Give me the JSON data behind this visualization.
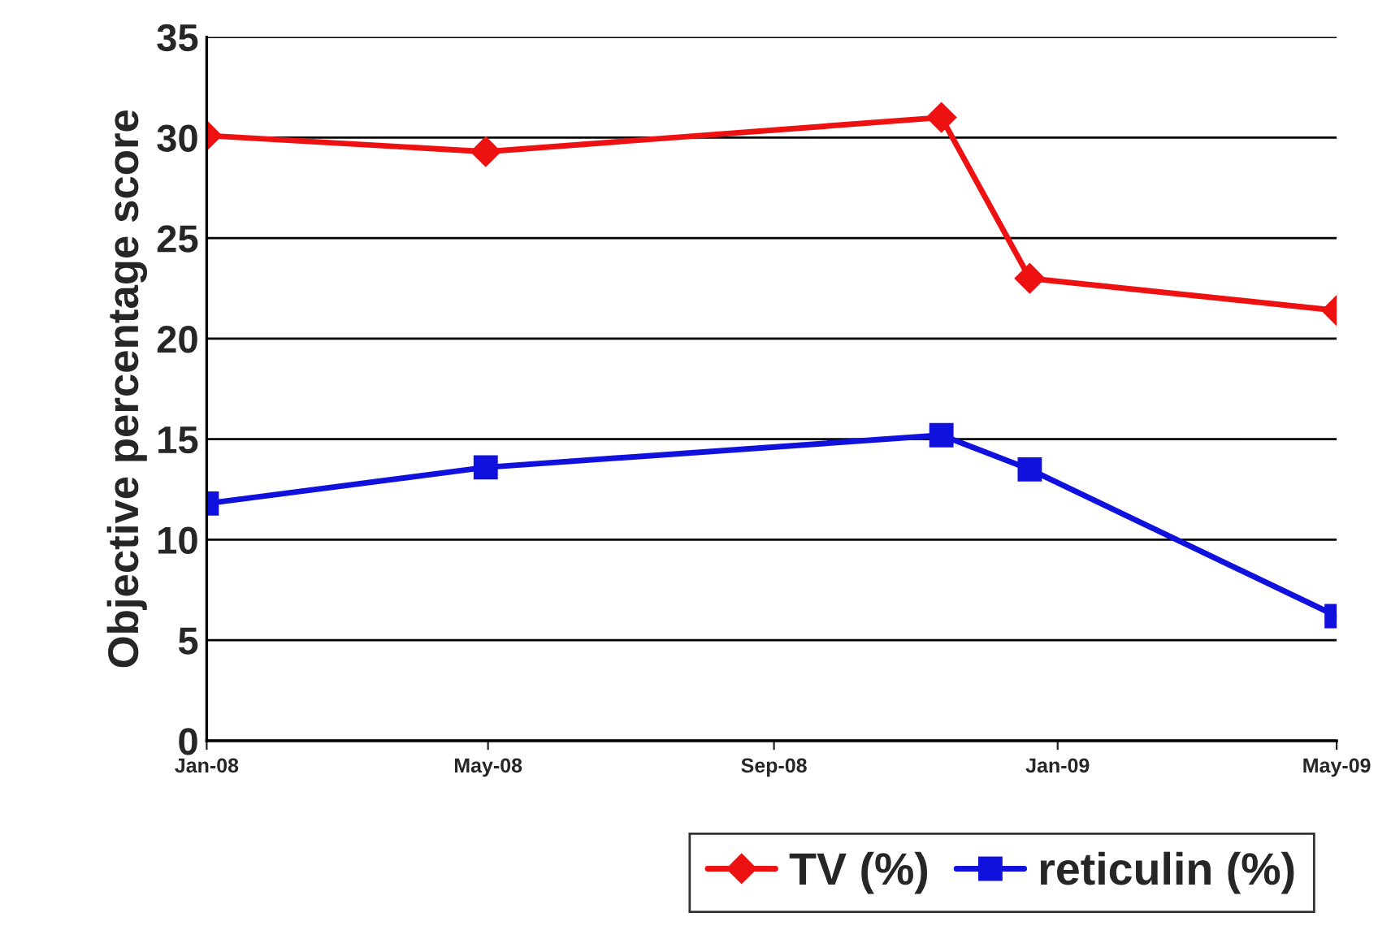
{
  "chart_data": {
    "type": "line",
    "ylabel": "Objective percentage score",
    "x": [
      "2008-01-01",
      "2008-04-30",
      "2008-11-12",
      "2008-12-20",
      "2009-05-01"
    ],
    "series": [
      {
        "name": "TV (%)",
        "color": "#ee1111",
        "marker": "diamond",
        "values": [
          30.1,
          29.3,
          31.0,
          23.0,
          21.4
        ]
      },
      {
        "name": "reticulin (%)",
        "color": "#1111dd",
        "marker": "square",
        "values": [
          11.8,
          13.6,
          15.2,
          13.5,
          6.2
        ]
      }
    ],
    "xlim": [
      "2008-01-01",
      "2009-05-01"
    ],
    "xticks": [
      {
        "value": "2008-01-01",
        "label": "Jan-08"
      },
      {
        "value": "2008-05-01",
        "label": "May-08"
      },
      {
        "value": "2008-09-01",
        "label": "Sep-08"
      },
      {
        "value": "2009-01-01",
        "label": "Jan-09"
      },
      {
        "value": "2009-05-01",
        "label": "May-09"
      }
    ],
    "ylim": [
      0,
      35
    ],
    "yticks": [
      0,
      5,
      10,
      15,
      20,
      25,
      30,
      35
    ],
    "grid": "y",
    "legend": "bottom",
    "line_style": "solid"
  }
}
